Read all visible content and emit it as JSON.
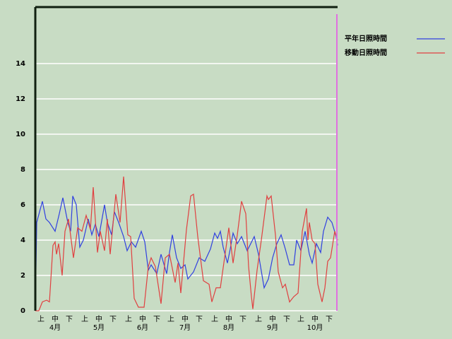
{
  "chart_data": {
    "type": "line",
    "xlim": [
      0,
      214
    ],
    "ylim": [
      0,
      17.2
    ],
    "yticks": [
      0,
      2,
      4,
      6,
      8,
      10,
      12,
      14
    ],
    "grid": true,
    "legend": "top-right",
    "xticks": [
      {
        "value": 4,
        "label": "上"
      },
      {
        "value": 14,
        "label": "中"
      },
      {
        "value": 24,
        "label": "下"
      },
      {
        "value": 35,
        "label": "上"
      },
      {
        "value": 45,
        "label": "中"
      },
      {
        "value": 55,
        "label": "下"
      },
      {
        "value": 66,
        "label": "上"
      },
      {
        "value": 76,
        "label": "中"
      },
      {
        "value": 86,
        "label": "下"
      },
      {
        "value": 96,
        "label": "上"
      },
      {
        "value": 106,
        "label": "中"
      },
      {
        "value": 116,
        "label": "下"
      },
      {
        "value": 127,
        "label": "上"
      },
      {
        "value": 137,
        "label": "中"
      },
      {
        "value": 147,
        "label": "下"
      },
      {
        "value": 158,
        "label": "上"
      },
      {
        "value": 168,
        "label": "中"
      },
      {
        "value": 178,
        "label": "下"
      },
      {
        "value": 188,
        "label": "上"
      },
      {
        "value": 198,
        "label": "中"
      },
      {
        "value": 208,
        "label": "下"
      }
    ],
    "month_ticks": [
      {
        "value": 14,
        "label": "4月"
      },
      {
        "value": 45,
        "label": "5月"
      },
      {
        "value": 76,
        "label": "6月"
      },
      {
        "value": 106,
        "label": "7月"
      },
      {
        "value": 137,
        "label": "8月"
      },
      {
        "value": 168,
        "label": "9月"
      },
      {
        "value": 198,
        "label": "10月"
      }
    ],
    "series": [
      {
        "name": "平年日照時間",
        "color": "#3040e0",
        "x": [
          0,
          1,
          5,
          7.5,
          10,
          14,
          17,
          19.5,
          23,
          25,
          26.5,
          29,
          31.5,
          34,
          37.5,
          40,
          42.5,
          45,
          49,
          51,
          54,
          56,
          59,
          62.5,
          65,
          68,
          71,
          75,
          77.5,
          80,
          82,
          86,
          89,
          93,
          95,
          97,
          100,
          103,
          106,
          108,
          112,
          116,
          120,
          124,
          127,
          129,
          131,
          133,
          136,
          138,
          140,
          143,
          146,
          150,
          155,
          158,
          162,
          165,
          168,
          171,
          174,
          177,
          180,
          183,
          185,
          188,
          191,
          194,
          196,
          199,
          202,
          204,
          207,
          210,
          213,
          214
        ],
        "values": [
          0,
          5,
          6.2,
          5.2,
          5,
          4.5,
          5.5,
          6.4,
          5,
          4.5,
          6.5,
          6,
          3.6,
          4,
          5.2,
          4.3,
          4.9,
          4.2,
          6,
          5,
          4.3,
          5.6,
          5,
          4.2,
          3.4,
          3.9,
          3.6,
          4.5,
          3.9,
          2.3,
          2.6,
          2.1,
          3.2,
          2.1,
          3.3,
          4.3,
          3,
          2.4,
          2.6,
          1.8,
          2.2,
          3,
          2.8,
          3.5,
          4.4,
          4.1,
          4.5,
          3.6,
          2.7,
          3.5,
          4.4,
          3.8,
          4.2,
          3.4,
          4.2,
          3.2,
          1.3,
          1.8,
          3,
          3.8,
          4.3,
          3.5,
          2.6,
          2.6,
          4,
          3.4,
          4.5,
          3.2,
          2.7,
          3.8,
          3.3,
          4.5,
          5.3,
          5,
          4.2,
          3.7
        ]
      },
      {
        "name": "移動日照時間",
        "color": "#e04040",
        "x": [
          0,
          2.5,
          5,
          8,
          10,
          12.5,
          14,
          15,
          16.5,
          19,
          21,
          23.5,
          27,
          30,
          33,
          36,
          39,
          41,
          44,
          46,
          49,
          51,
          53,
          57,
          60,
          62.5,
          65.5,
          67.5,
          70,
          73,
          77,
          80,
          82,
          85,
          89,
          92,
          95,
          99,
          101,
          103,
          107,
          110,
          112,
          115,
          119,
          123,
          125,
          128,
          131,
          134,
          137,
          140,
          143,
          146,
          149,
          151,
          153,
          154,
          157,
          160,
          164,
          165,
          167,
          170,
          172,
          175,
          177,
          180,
          183,
          186,
          189,
          192,
          193,
          194,
          196,
          198,
          200,
          203,
          205,
          207,
          209,
          212,
          214
        ],
        "values": [
          0,
          0,
          0.5,
          0.6,
          0.5,
          3.7,
          3.9,
          3.2,
          3.8,
          2,
          4.5,
          5.2,
          3,
          4.7,
          4.5,
          5.4,
          4.6,
          7,
          3.3,
          4.5,
          3.4,
          5.2,
          3.2,
          6.6,
          5,
          7.6,
          4.3,
          4.2,
          0.7,
          0.2,
          0.2,
          2.5,
          3,
          2.5,
          0.4,
          3,
          3.2,
          1.6,
          2.7,
          1,
          4.6,
          6.5,
          6.6,
          4.2,
          1.7,
          1.5,
          0.5,
          1.3,
          1.3,
          3,
          4.7,
          2.7,
          4.3,
          6.2,
          5.5,
          2.5,
          0.8,
          0.1,
          2.3,
          4,
          6.5,
          6.3,
          6.5,
          4.3,
          2.2,
          1.3,
          1.5,
          0.5,
          0.8,
          1,
          4.5,
          5.8,
          4,
          5,
          4,
          3.8,
          1.5,
          0.5,
          1.3,
          2.8,
          3,
          4.5,
          4
        ]
      }
    ]
  }
}
